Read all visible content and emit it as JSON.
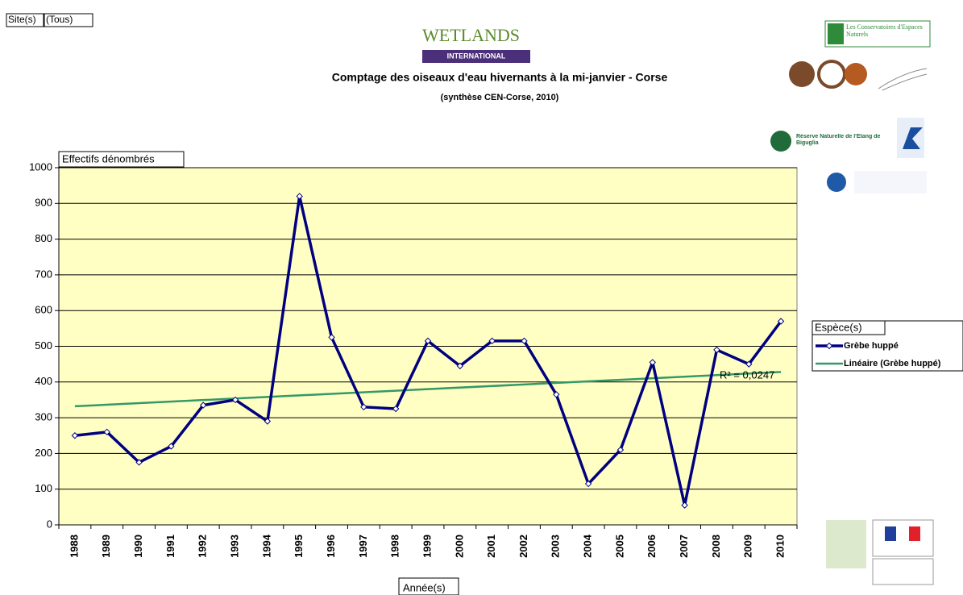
{
  "chart_data": {
    "type": "line",
    "filter_label": "Site(s)",
    "filter_value": "(Tous)",
    "title": "Comptage des oiseaux d'eau hivernants à la mi-janvier - Corse",
    "subtitle": "(synthèse CEN-Corse, 2010)",
    "y_label": "Effectifs dénombrés",
    "x_label": "Année(s)",
    "legend_title": "Espèce(s)",
    "categories": [
      "1988",
      "1989",
      "1990",
      "1991",
      "1992",
      "1993",
      "1994",
      "1995",
      "1996",
      "1997",
      "1998",
      "1999",
      "2000",
      "2001",
      "2002",
      "2003",
      "2004",
      "2005",
      "2006",
      "2007",
      "2008",
      "2009",
      "2010"
    ],
    "series": [
      {
        "name": "Grèbe huppé",
        "color": "#000080",
        "values": [
          250,
          260,
          175,
          220,
          335,
          350,
          290,
          920,
          525,
          330,
          325,
          515,
          445,
          515,
          515,
          365,
          115,
          210,
          455,
          55,
          490,
          450,
          570
        ]
      }
    ],
    "trendline": {
      "name": "Linéaire (Grèbe huppé)",
      "color": "#339966",
      "start": 332,
      "end": 428,
      "label": "R² = 0,0247"
    },
    "ylim": [
      0,
      1000
    ],
    "yticks": [
      0,
      100,
      200,
      300,
      400,
      500,
      600,
      700,
      800,
      900,
      1000
    ],
    "grid": true,
    "plot_background": "#ffffc4",
    "logos": {
      "wetlands": "WETLANDS",
      "wetlands_sub": "INTERNATIONAL",
      "cen": "Les Conservatoires d'Espaces Naturels",
      "reserve": "Réserve Naturelle de l'Etang de Biguglia"
    }
  }
}
